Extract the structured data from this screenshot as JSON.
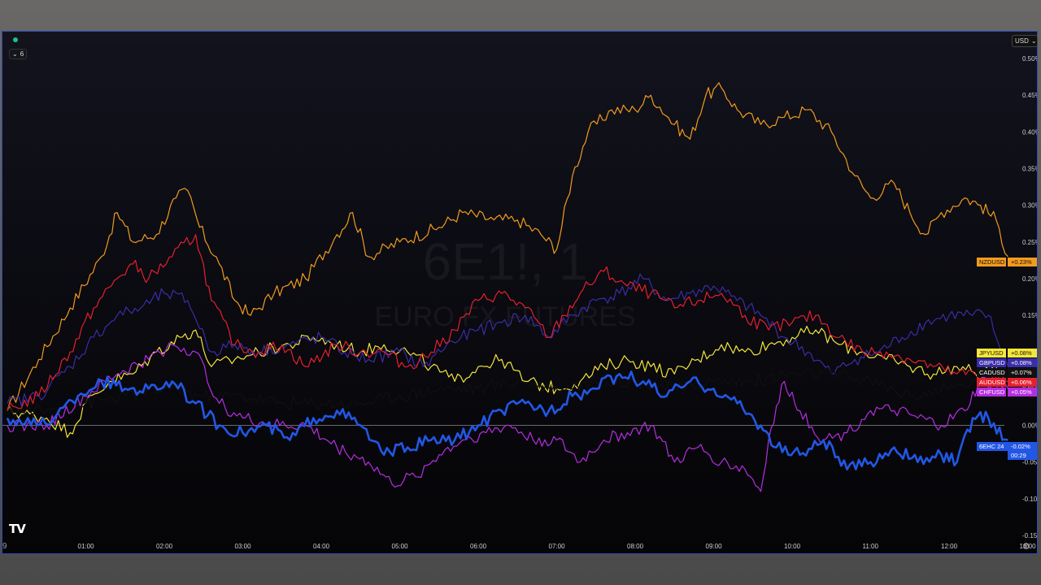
{
  "toolbar": {
    "currency": "USD",
    "currency_chevron": "⌄",
    "indicator_count": "6"
  },
  "logo_text": "TV",
  "chart_data": {
    "type": "line",
    "watermark": {
      "symbol": "6E1!, 1",
      "name": "EURO FX FUTURES"
    },
    "x_ticks": [
      "01:00",
      "02:00",
      "03:00",
      "04:00",
      "05:00",
      "06:00",
      "07:00",
      "08:00",
      "09:00",
      "10:00",
      "11:00",
      "12:00",
      "13:00"
    ],
    "y_ticks": [
      "0.50%",
      "0.45%",
      "0.40%",
      "0.35%",
      "0.30%",
      "0.25%",
      "0.20%",
      "0.15%",
      "0.10%",
      "0.05%",
      "0.00%",
      "-0.05%",
      "-0.10%",
      "-0.15%"
    ],
    "ylim": [
      -0.15,
      0.5
    ],
    "xlim": [
      0,
      12.8
    ],
    "zero_line": 0,
    "series": [
      {
        "name": "NZDUSD",
        "label": "+0.23%",
        "color": "#f29b1d",
        "text_color": "#111111",
        "width": 1.2,
        "points": [
          [
            0,
            0.02
          ],
          [
            0.4,
            0.09
          ],
          [
            0.8,
            0.16
          ],
          [
            1.2,
            0.23
          ],
          [
            1.4,
            0.29
          ],
          [
            1.6,
            0.25
          ],
          [
            1.9,
            0.26
          ],
          [
            2.15,
            0.31
          ],
          [
            2.3,
            0.32
          ],
          [
            2.45,
            0.27
          ],
          [
            2.7,
            0.22
          ],
          [
            2.9,
            0.17
          ],
          [
            3.1,
            0.15
          ],
          [
            3.4,
            0.18
          ],
          [
            3.8,
            0.2
          ],
          [
            4.2,
            0.26
          ],
          [
            4.4,
            0.29
          ],
          [
            4.6,
            0.23
          ],
          [
            5.0,
            0.25
          ],
          [
            5.5,
            0.27
          ],
          [
            5.8,
            0.29
          ],
          [
            6.2,
            0.28
          ],
          [
            6.5,
            0.28
          ],
          [
            6.8,
            0.26
          ],
          [
            7.0,
            0.24
          ],
          [
            7.2,
            0.34
          ],
          [
            7.4,
            0.4
          ],
          [
            7.7,
            0.43
          ],
          [
            8.0,
            0.43
          ],
          [
            8.2,
            0.45
          ],
          [
            8.5,
            0.41
          ],
          [
            8.7,
            0.39
          ],
          [
            8.9,
            0.45
          ],
          [
            9.1,
            0.46
          ],
          [
            9.3,
            0.43
          ],
          [
            9.6,
            0.41
          ],
          [
            9.9,
            0.42
          ],
          [
            10.2,
            0.43
          ],
          [
            10.5,
            0.4
          ],
          [
            10.8,
            0.34
          ],
          [
            11.0,
            0.31
          ],
          [
            11.3,
            0.33
          ],
          [
            11.5,
            0.29
          ],
          [
            11.7,
            0.26
          ],
          [
            11.9,
            0.29
          ],
          [
            12.2,
            0.31
          ],
          [
            12.4,
            0.3
          ],
          [
            12.6,
            0.28
          ],
          [
            12.75,
            0.23
          ]
        ]
      },
      {
        "name": "JPYUSD",
        "label": "+0.08%",
        "color": "#f5e63a",
        "text_color": "#111111",
        "width": 1.2,
        "points": [
          [
            0,
            0.02
          ],
          [
            0.5,
            0.01
          ],
          [
            0.8,
            -0.01
          ],
          [
            1.0,
            0.03
          ],
          [
            1.3,
            0.06
          ],
          [
            1.6,
            0.07
          ],
          [
            1.9,
            0.1
          ],
          [
            2.2,
            0.12
          ],
          [
            2.4,
            0.13
          ],
          [
            2.6,
            0.08
          ],
          [
            2.9,
            0.09
          ],
          [
            3.2,
            0.1
          ],
          [
            3.6,
            0.11
          ],
          [
            3.9,
            0.12
          ],
          [
            4.2,
            0.11
          ],
          [
            4.5,
            0.1
          ],
          [
            4.8,
            0.11
          ],
          [
            5.1,
            0.1
          ],
          [
            5.4,
            0.08
          ],
          [
            5.7,
            0.06
          ],
          [
            6.0,
            0.08
          ],
          [
            6.3,
            0.09
          ],
          [
            6.6,
            0.06
          ],
          [
            7.0,
            0.05
          ],
          [
            7.3,
            0.06
          ],
          [
            7.6,
            0.08
          ],
          [
            7.9,
            0.09
          ],
          [
            8.2,
            0.08
          ],
          [
            8.5,
            0.07
          ],
          [
            8.8,
            0.09
          ],
          [
            9.1,
            0.11
          ],
          [
            9.4,
            0.1
          ],
          [
            9.7,
            0.11
          ],
          [
            10.0,
            0.12
          ],
          [
            10.3,
            0.13
          ],
          [
            10.6,
            0.11
          ],
          [
            10.9,
            0.1
          ],
          [
            11.2,
            0.09
          ],
          [
            11.5,
            0.08
          ],
          [
            11.8,
            0.07
          ],
          [
            12.1,
            0.08
          ],
          [
            12.4,
            0.07
          ],
          [
            12.7,
            0.08
          ]
        ]
      },
      {
        "name": "GBPUSD",
        "label": "+0.08%",
        "color": "#3a2da8",
        "text_color": "#ffffff",
        "width": 1.2,
        "points": [
          [
            0,
            0.03
          ],
          [
            0.4,
            0.04
          ],
          [
            0.8,
            0.08
          ],
          [
            1.1,
            0.12
          ],
          [
            1.4,
            0.15
          ],
          [
            1.7,
            0.16
          ],
          [
            2.0,
            0.18
          ],
          [
            2.3,
            0.17
          ],
          [
            2.6,
            0.1
          ],
          [
            2.9,
            0.11
          ],
          [
            3.2,
            0.1
          ],
          [
            3.6,
            0.11
          ],
          [
            4.0,
            0.12
          ],
          [
            4.3,
            0.1
          ],
          [
            4.6,
            0.09
          ],
          [
            5.0,
            0.1
          ],
          [
            5.3,
            0.08
          ],
          [
            5.6,
            0.11
          ],
          [
            6.0,
            0.13
          ],
          [
            6.3,
            0.14
          ],
          [
            6.6,
            0.15
          ],
          [
            6.9,
            0.12
          ],
          [
            7.2,
            0.15
          ],
          [
            7.5,
            0.17
          ],
          [
            7.8,
            0.18
          ],
          [
            8.1,
            0.2
          ],
          [
            8.4,
            0.17
          ],
          [
            8.7,
            0.18
          ],
          [
            9.0,
            0.19
          ],
          [
            9.3,
            0.17
          ],
          [
            9.6,
            0.15
          ],
          [
            9.9,
            0.12
          ],
          [
            10.2,
            0.1
          ],
          [
            10.5,
            0.07
          ],
          [
            10.8,
            0.09
          ],
          [
            11.1,
            0.1
          ],
          [
            11.4,
            0.12
          ],
          [
            11.7,
            0.14
          ],
          [
            12.0,
            0.15
          ],
          [
            12.3,
            0.15
          ],
          [
            12.5,
            0.15
          ],
          [
            12.6,
            0.12
          ],
          [
            12.75,
            0.08
          ]
        ]
      },
      {
        "name": "CADUSD",
        "label": "+0.07%",
        "color": "#111111",
        "text_color": "#ffffff",
        "width": 1.2,
        "points": [
          [
            0,
            0.02
          ],
          [
            0.5,
            0.02
          ],
          [
            1.0,
            0.03
          ],
          [
            1.5,
            0.04
          ],
          [
            2.0,
            0.05
          ],
          [
            2.5,
            0.04
          ],
          [
            3.0,
            0.04
          ],
          [
            3.5,
            0.03
          ],
          [
            4.0,
            0.03
          ],
          [
            4.5,
            0.03
          ],
          [
            5.0,
            0.04
          ],
          [
            5.5,
            0.05
          ],
          [
            6.0,
            0.05
          ],
          [
            6.5,
            0.06
          ],
          [
            7.0,
            0.05
          ],
          [
            7.5,
            0.06
          ],
          [
            8.0,
            0.06
          ],
          [
            8.5,
            0.05
          ],
          [
            9.0,
            0.06
          ],
          [
            9.5,
            0.06
          ],
          [
            10.0,
            0.07
          ],
          [
            10.5,
            0.07
          ],
          [
            11.0,
            0.06
          ],
          [
            11.5,
            0.04
          ],
          [
            12.0,
            0.05
          ],
          [
            12.4,
            0.06
          ],
          [
            12.75,
            0.07
          ]
        ]
      },
      {
        "name": "AUDUSD",
        "label": "+0.06%",
        "color": "#e5202e",
        "text_color": "#ffffff",
        "width": 1.2,
        "points": [
          [
            0,
            0.02
          ],
          [
            0.4,
            0.04
          ],
          [
            0.8,
            0.1
          ],
          [
            1.1,
            0.16
          ],
          [
            1.4,
            0.2
          ],
          [
            1.6,
            0.22
          ],
          [
            1.8,
            0.2
          ],
          [
            2.1,
            0.23
          ],
          [
            2.4,
            0.26
          ],
          [
            2.6,
            0.17
          ],
          [
            2.9,
            0.11
          ],
          [
            3.2,
            0.1
          ],
          [
            3.5,
            0.11
          ],
          [
            3.8,
            0.08
          ],
          [
            4.2,
            0.11
          ],
          [
            4.5,
            0.1
          ],
          [
            4.8,
            0.1
          ],
          [
            5.1,
            0.08
          ],
          [
            5.4,
            0.1
          ],
          [
            5.7,
            0.13
          ],
          [
            6.0,
            0.17
          ],
          [
            6.3,
            0.18
          ],
          [
            6.6,
            0.16
          ],
          [
            6.9,
            0.12
          ],
          [
            7.1,
            0.15
          ],
          [
            7.3,
            0.18
          ],
          [
            7.6,
            0.21
          ],
          [
            7.9,
            0.19
          ],
          [
            8.2,
            0.18
          ],
          [
            8.5,
            0.16
          ],
          [
            8.8,
            0.17
          ],
          [
            9.1,
            0.18
          ],
          [
            9.4,
            0.15
          ],
          [
            9.7,
            0.13
          ],
          [
            10.0,
            0.14
          ],
          [
            10.3,
            0.15
          ],
          [
            10.6,
            0.12
          ],
          [
            10.9,
            0.1
          ],
          [
            11.2,
            0.1
          ],
          [
            11.5,
            0.09
          ],
          [
            11.8,
            0.08
          ],
          [
            12.1,
            0.07
          ],
          [
            12.4,
            0.07
          ],
          [
            12.75,
            0.06
          ]
        ]
      },
      {
        "name": "CHFUSD",
        "label": "+0.05%",
        "color": "#b52ee0",
        "text_color": "#ffffff",
        "width": 1.2,
        "points": [
          [
            0,
            0.0
          ],
          [
            0.5,
            0.0
          ],
          [
            1.0,
            0.04
          ],
          [
            1.4,
            0.07
          ],
          [
            1.8,
            0.09
          ],
          [
            2.1,
            0.11
          ],
          [
            2.4,
            0.1
          ],
          [
            2.7,
            0.03
          ],
          [
            3.0,
            0.01
          ],
          [
            3.4,
            0.0
          ],
          [
            3.8,
            0.0
          ],
          [
            4.2,
            -0.03
          ],
          [
            4.6,
            -0.05
          ],
          [
            4.9,
            -0.08
          ],
          [
            5.2,
            -0.07
          ],
          [
            5.5,
            -0.04
          ],
          [
            5.8,
            -0.02
          ],
          [
            6.1,
            -0.01
          ],
          [
            6.4,
            0.0
          ],
          [
            6.7,
            -0.02
          ],
          [
            7.0,
            -0.02
          ],
          [
            7.3,
            -0.05
          ],
          [
            7.6,
            -0.02
          ],
          [
            7.9,
            -0.01
          ],
          [
            8.2,
            0.0
          ],
          [
            8.5,
            -0.05
          ],
          [
            8.8,
            -0.03
          ],
          [
            9.1,
            -0.05
          ],
          [
            9.4,
            -0.06
          ],
          [
            9.6,
            -0.09
          ],
          [
            9.7,
            -0.02
          ],
          [
            9.9,
            0.06
          ],
          [
            10.1,
            0.02
          ],
          [
            10.4,
            -0.02
          ],
          [
            10.7,
            -0.01
          ],
          [
            11.0,
            0.02
          ],
          [
            11.3,
            0.02
          ],
          [
            11.6,
            0.01
          ],
          [
            11.9,
            0.0
          ],
          [
            12.2,
            0.02
          ],
          [
            12.4,
            0.06
          ],
          [
            12.75,
            0.05
          ]
        ]
      },
      {
        "name": "6EHC 24",
        "label": "-0.02%",
        "sublabel": "00:29",
        "color": "#2257e6",
        "text_color": "#ffffff",
        "width": 2.6,
        "points": [
          [
            0,
            0.01
          ],
          [
            0.3,
            0.0
          ],
          [
            0.6,
            0.01
          ],
          [
            0.9,
            0.04
          ],
          [
            1.2,
            0.06
          ],
          [
            1.5,
            0.05
          ],
          [
            1.8,
            0.05
          ],
          [
            2.1,
            0.06
          ],
          [
            2.4,
            0.03
          ],
          [
            2.7,
            0.0
          ],
          [
            3.0,
            -0.01
          ],
          [
            3.3,
            0.0
          ],
          [
            3.6,
            -0.02
          ],
          [
            3.9,
            0.01
          ],
          [
            4.2,
            0.02
          ],
          [
            4.5,
            0.0
          ],
          [
            4.8,
            -0.04
          ],
          [
            5.1,
            -0.03
          ],
          [
            5.4,
            -0.02
          ],
          [
            5.7,
            -0.02
          ],
          [
            6.0,
            0.0
          ],
          [
            6.3,
            0.02
          ],
          [
            6.6,
            0.03
          ],
          [
            6.9,
            0.02
          ],
          [
            7.2,
            0.04
          ],
          [
            7.5,
            0.05
          ],
          [
            7.8,
            0.07
          ],
          [
            8.1,
            0.06
          ],
          [
            8.4,
            0.04
          ],
          [
            8.7,
            0.06
          ],
          [
            9.0,
            0.05
          ],
          [
            9.3,
            0.03
          ],
          [
            9.6,
            -0.0
          ],
          [
            9.8,
            -0.03
          ],
          [
            10.1,
            -0.04
          ],
          [
            10.4,
            -0.02
          ],
          [
            10.7,
            -0.06
          ],
          [
            11.0,
            -0.05
          ],
          [
            11.3,
            -0.03
          ],
          [
            11.6,
            -0.05
          ],
          [
            11.9,
            -0.04
          ],
          [
            12.1,
            -0.05
          ],
          [
            12.3,
            0.01
          ],
          [
            12.5,
            0.01
          ],
          [
            12.75,
            -0.02
          ]
        ]
      }
    ]
  }
}
